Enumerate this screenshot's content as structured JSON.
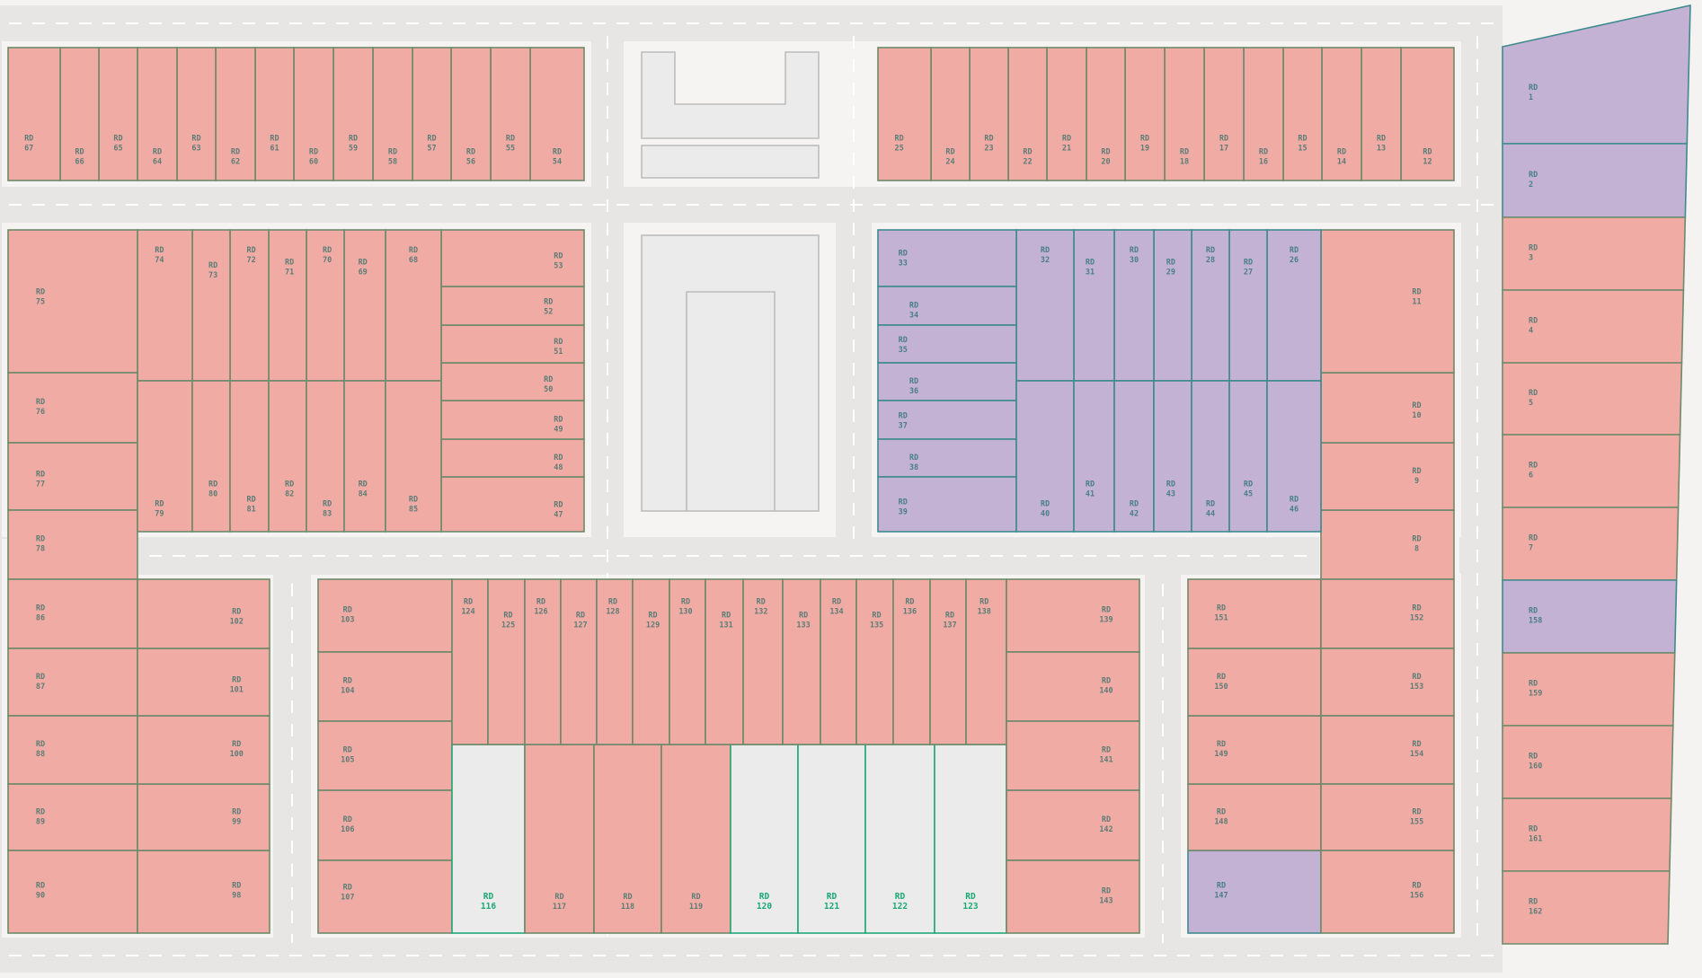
{
  "map": {
    "plot_prefix": "RD",
    "colors": {
      "sold": "#f1aba5",
      "reserved": "#c3b2d4",
      "available": "#ebebeb",
      "road": "#e8e6e4"
    },
    "plots": [
      {
        "id": "1",
        "status": "reserved"
      },
      {
        "id": "2",
        "status": "reserved"
      },
      {
        "id": "3",
        "status": "sold"
      },
      {
        "id": "4",
        "status": "sold"
      },
      {
        "id": "5",
        "status": "sold"
      },
      {
        "id": "6",
        "status": "sold"
      },
      {
        "id": "7",
        "status": "sold"
      },
      {
        "id": "8",
        "status": "sold"
      },
      {
        "id": "9",
        "status": "sold"
      },
      {
        "id": "10",
        "status": "sold"
      },
      {
        "id": "11",
        "status": "sold"
      },
      {
        "id": "12",
        "status": "sold"
      },
      {
        "id": "13",
        "status": "sold"
      },
      {
        "id": "14",
        "status": "sold"
      },
      {
        "id": "15",
        "status": "sold"
      },
      {
        "id": "16",
        "status": "sold"
      },
      {
        "id": "17",
        "status": "sold"
      },
      {
        "id": "18",
        "status": "sold"
      },
      {
        "id": "19",
        "status": "sold"
      },
      {
        "id": "20",
        "status": "sold"
      },
      {
        "id": "21",
        "status": "sold"
      },
      {
        "id": "22",
        "status": "sold"
      },
      {
        "id": "23",
        "status": "sold"
      },
      {
        "id": "24",
        "status": "sold"
      },
      {
        "id": "25",
        "status": "sold"
      },
      {
        "id": "26",
        "status": "reserved"
      },
      {
        "id": "27",
        "status": "reserved"
      },
      {
        "id": "28",
        "status": "reserved"
      },
      {
        "id": "29",
        "status": "reserved"
      },
      {
        "id": "30",
        "status": "reserved"
      },
      {
        "id": "31",
        "status": "reserved"
      },
      {
        "id": "32",
        "status": "reserved"
      },
      {
        "id": "33",
        "status": "reserved"
      },
      {
        "id": "34",
        "status": "reserved"
      },
      {
        "id": "35",
        "status": "reserved"
      },
      {
        "id": "36",
        "status": "reserved"
      },
      {
        "id": "37",
        "status": "reserved"
      },
      {
        "id": "38",
        "status": "reserved"
      },
      {
        "id": "39",
        "status": "reserved"
      },
      {
        "id": "40",
        "status": "reserved"
      },
      {
        "id": "41",
        "status": "reserved"
      },
      {
        "id": "42",
        "status": "reserved"
      },
      {
        "id": "43",
        "status": "reserved"
      },
      {
        "id": "44",
        "status": "reserved"
      },
      {
        "id": "45",
        "status": "reserved"
      },
      {
        "id": "46",
        "status": "reserved"
      },
      {
        "id": "47",
        "status": "sold"
      },
      {
        "id": "48",
        "status": "sold"
      },
      {
        "id": "49",
        "status": "sold"
      },
      {
        "id": "50",
        "status": "sold"
      },
      {
        "id": "51",
        "status": "sold"
      },
      {
        "id": "52",
        "status": "sold"
      },
      {
        "id": "53",
        "status": "sold"
      },
      {
        "id": "54",
        "status": "sold"
      },
      {
        "id": "55",
        "status": "sold"
      },
      {
        "id": "56",
        "status": "sold"
      },
      {
        "id": "57",
        "status": "sold"
      },
      {
        "id": "58",
        "status": "sold"
      },
      {
        "id": "59",
        "status": "sold"
      },
      {
        "id": "60",
        "status": "sold"
      },
      {
        "id": "61",
        "status": "sold"
      },
      {
        "id": "62",
        "status": "sold"
      },
      {
        "id": "63",
        "status": "sold"
      },
      {
        "id": "64",
        "status": "sold"
      },
      {
        "id": "65",
        "status": "sold"
      },
      {
        "id": "66",
        "status": "sold"
      },
      {
        "id": "67",
        "status": "sold"
      },
      {
        "id": "68",
        "status": "sold"
      },
      {
        "id": "69",
        "status": "sold"
      },
      {
        "id": "70",
        "status": "sold"
      },
      {
        "id": "71",
        "status": "sold"
      },
      {
        "id": "72",
        "status": "sold"
      },
      {
        "id": "73",
        "status": "sold"
      },
      {
        "id": "74",
        "status": "sold"
      },
      {
        "id": "75",
        "status": "sold"
      },
      {
        "id": "76",
        "status": "sold"
      },
      {
        "id": "77",
        "status": "sold"
      },
      {
        "id": "78",
        "status": "sold"
      },
      {
        "id": "79",
        "status": "sold"
      },
      {
        "id": "80",
        "status": "sold"
      },
      {
        "id": "81",
        "status": "sold"
      },
      {
        "id": "82",
        "status": "sold"
      },
      {
        "id": "83",
        "status": "sold"
      },
      {
        "id": "84",
        "status": "sold"
      },
      {
        "id": "85",
        "status": "sold"
      },
      {
        "id": "86",
        "status": "sold"
      },
      {
        "id": "87",
        "status": "sold"
      },
      {
        "id": "88",
        "status": "sold"
      },
      {
        "id": "89",
        "status": "sold"
      },
      {
        "id": "90",
        "status": "sold"
      },
      {
        "id": "98",
        "status": "sold"
      },
      {
        "id": "99",
        "status": "sold"
      },
      {
        "id": "100",
        "status": "sold"
      },
      {
        "id": "101",
        "status": "sold"
      },
      {
        "id": "102",
        "status": "sold"
      },
      {
        "id": "103",
        "status": "sold"
      },
      {
        "id": "104",
        "status": "sold"
      },
      {
        "id": "105",
        "status": "sold"
      },
      {
        "id": "106",
        "status": "sold"
      },
      {
        "id": "107",
        "status": "sold"
      },
      {
        "id": "116",
        "status": "available"
      },
      {
        "id": "117",
        "status": "sold"
      },
      {
        "id": "118",
        "status": "sold"
      },
      {
        "id": "119",
        "status": "sold"
      },
      {
        "id": "120",
        "status": "available"
      },
      {
        "id": "121",
        "status": "available"
      },
      {
        "id": "122",
        "status": "available"
      },
      {
        "id": "123",
        "status": "available"
      },
      {
        "id": "124",
        "status": "sold"
      },
      {
        "id": "125",
        "status": "sold"
      },
      {
        "id": "126",
        "status": "sold"
      },
      {
        "id": "127",
        "status": "sold"
      },
      {
        "id": "128",
        "status": "sold"
      },
      {
        "id": "129",
        "status": "sold"
      },
      {
        "id": "130",
        "status": "sold"
      },
      {
        "id": "131",
        "status": "sold"
      },
      {
        "id": "132",
        "status": "sold"
      },
      {
        "id": "133",
        "status": "sold"
      },
      {
        "id": "134",
        "status": "sold"
      },
      {
        "id": "135",
        "status": "sold"
      },
      {
        "id": "136",
        "status": "sold"
      },
      {
        "id": "137",
        "status": "sold"
      },
      {
        "id": "138",
        "status": "sold"
      },
      {
        "id": "139",
        "status": "sold"
      },
      {
        "id": "140",
        "status": "sold"
      },
      {
        "id": "141",
        "status": "sold"
      },
      {
        "id": "142",
        "status": "sold"
      },
      {
        "id": "143",
        "status": "sold"
      },
      {
        "id": "147",
        "status": "reserved"
      },
      {
        "id": "148",
        "status": "sold"
      },
      {
        "id": "149",
        "status": "sold"
      },
      {
        "id": "150",
        "status": "sold"
      },
      {
        "id": "151",
        "status": "sold"
      },
      {
        "id": "152",
        "status": "sold"
      },
      {
        "id": "153",
        "status": "sold"
      },
      {
        "id": "154",
        "status": "sold"
      },
      {
        "id": "155",
        "status": "sold"
      },
      {
        "id": "156",
        "status": "sold"
      },
      {
        "id": "158",
        "status": "reserved"
      },
      {
        "id": "159",
        "status": "sold"
      },
      {
        "id": "160",
        "status": "sold"
      },
      {
        "id": "161",
        "status": "sold"
      },
      {
        "id": "162",
        "status": "sold"
      }
    ]
  }
}
